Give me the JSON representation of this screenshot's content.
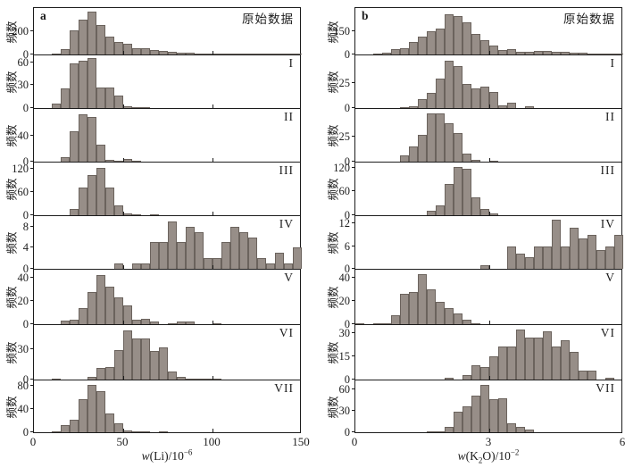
{
  "chart_data": {
    "type": "bar",
    "subtype": "stacked-panel-histograms",
    "ylabel_all_panels": "频数",
    "colors": {
      "bar_fill": "#978e88",
      "bar_stroke": "#6b635d",
      "axis": "#1c1c1c",
      "background": "#ffffff"
    },
    "columns": [
      {
        "corner_label": "a",
        "xlabel_text": "w(Li)/10⁻⁶",
        "xlabel_parts": [
          {
            "t": "w",
            "s": "i"
          },
          {
            "t": "(Li)/10"
          },
          {
            "t": "−6",
            "s": "sup"
          }
        ],
        "xlim": [
          0,
          150
        ],
        "bin_width": 5,
        "x_tick_labels": [
          0,
          50,
          100,
          150
        ],
        "x_inner_ticks": [
          50,
          100
        ],
        "panels": [
          {
            "label": "原始数据",
            "ymax": 400,
            "yticks": [
              0,
              200
            ],
            "bin_start": 10,
            "counts": [
              8,
              45,
              205,
              300,
              370,
              250,
              155,
              105,
              90,
              55,
              55,
              35,
              30,
              22,
              15,
              12,
              10,
              8,
              6,
              5,
              4,
              6,
              6,
              5,
              4,
              3,
              3,
              4
            ]
          },
          {
            "label": "I",
            "ymax": 69,
            "yticks": [
              0,
              30,
              60
            ],
            "bin_start": 10,
            "counts": [
              6,
              26,
              58,
              62,
              66,
              27,
              27,
              16,
              2,
              1,
              1
            ]
          },
          {
            "label": "II",
            "ymax": 80,
            "yticks": [
              0,
              40
            ],
            "bin_start": 15,
            "counts": [
              7,
              46,
              72,
              68,
              26,
              3,
              1,
              4,
              1
            ]
          },
          {
            "label": "III",
            "ymax": 135,
            "yticks": [
              0,
              60,
              120
            ],
            "bin_start": 20,
            "counts": [
              15,
              70,
              103,
              122,
              70,
              25,
              5,
              2,
              0,
              1
            ]
          },
          {
            "label": "IV",
            "ymax": 10,
            "yticks": [
              0,
              4,
              8
            ],
            "bin_start": 45,
            "counts": [
              1,
              0,
              1,
              1,
              5,
              5,
              9,
              5,
              8,
              7,
              2,
              2,
              5,
              8,
              7,
              6,
              2,
              1,
              3,
              1,
              4
            ]
          },
          {
            "label": "V",
            "ymax": 47,
            "yticks": [
              0,
              20,
              40
            ],
            "bin_start": 15,
            "counts": [
              3,
              4,
              14,
              28,
              42,
              32,
              23,
              16,
              4,
              5,
              2,
              0,
              1,
              2,
              2,
              0,
              0,
              1
            ]
          },
          {
            "label": "VI",
            "ymax": 53,
            "yticks": [
              0,
              30
            ],
            "bin_start": 10,
            "counts": [
              1,
              0,
              0,
              0,
              3,
              11,
              12,
              29,
              48,
              40,
              40,
              28,
              31,
              8,
              3,
              1,
              1,
              1,
              1
            ]
          },
          {
            "label": "VII",
            "ymax": 90,
            "yticks": [
              0,
              40,
              80
            ],
            "bin_start": 10,
            "counts": [
              2,
              13,
              22,
              58,
              82,
              72,
              33,
              16,
              3,
              2,
              1,
              0,
              1
            ]
          }
        ]
      },
      {
        "corner_label": "b",
        "xlabel_text": "w(K₂O)/10⁻²",
        "xlabel_parts": [
          {
            "t": "w",
            "s": "i"
          },
          {
            "t": "(K"
          },
          {
            "t": "2",
            "s": "sub"
          },
          {
            "t": "O)/10"
          },
          {
            "t": "−2",
            "s": "sup"
          }
        ],
        "xlim": [
          0,
          6
        ],
        "bin_width": 0.2,
        "x_tick_labels": [
          0,
          3,
          6
        ],
        "x_inner_ticks": [
          3
        ],
        "panels": [
          {
            "label": "原始数据",
            "ymax": 300,
            "yticks": [
              0,
              150
            ],
            "bin_start": 0.4,
            "counts": [
              4,
              10,
              32,
              40,
              80,
              115,
              150,
              170,
              260,
              250,
              205,
              130,
              95,
              60,
              27,
              34,
              16,
              20,
              25,
              25,
              20,
              16,
              14,
              11,
              5,
              3,
              3,
              4
            ]
          },
          {
            "label": "I",
            "ymax": 53,
            "yticks": [
              0,
              25
            ],
            "bin_start": 1.0,
            "counts": [
              1,
              2,
              9,
              15,
              30,
              48,
              42,
              24,
              20,
              22,
              16,
              3,
              5,
              0,
              2
            ]
          },
          {
            "label": "II",
            "ymax": 52,
            "yticks": [
              0,
              25
            ],
            "bin_start": 1.0,
            "counts": [
              6,
              15,
              26,
              48,
              48,
              38,
              28,
              8,
              2,
              0,
              1
            ]
          },
          {
            "label": "III",
            "ymax": 133,
            "yticks": [
              0,
              60,
              120
            ],
            "bin_start": 1.6,
            "counts": [
              12,
              25,
              80,
              122,
              118,
              45,
              15,
              5
            ]
          },
          {
            "label": "IV",
            "ymax": 14,
            "yticks": [
              0,
              6,
              12
            ],
            "bin_start": 2.8,
            "counts": [
              1,
              0,
              0,
              6,
              4,
              3,
              6,
              6,
              13,
              6,
              11,
              8,
              9,
              5,
              6,
              9
            ]
          },
          {
            "label": "V",
            "ymax": 47,
            "yticks": [
              0,
              20,
              40
            ],
            "bin_start": 0,
            "counts": [
              1,
              0,
              1,
              1,
              8,
              26,
              28,
              43,
              30,
              19,
              14,
              9,
              4,
              1
            ]
          },
          {
            "label": "VI",
            "ymax": 35,
            "yticks": [
              0,
              15,
              30
            ],
            "bin_start": 2.0,
            "counts": [
              1,
              0,
              3,
              9,
              8,
              15,
              21,
              21,
              32,
              27,
              27,
              31,
              21,
              25,
              18,
              6,
              6,
              0,
              1
            ]
          },
          {
            "label": "VII",
            "ymax": 73,
            "yticks": [
              0,
              30,
              60
            ],
            "bin_start": 1.6,
            "counts": [
              1,
              1,
              8,
              29,
              36,
              51,
              67,
              46,
              48,
              13,
              8,
              4
            ]
          }
        ]
      }
    ]
  }
}
